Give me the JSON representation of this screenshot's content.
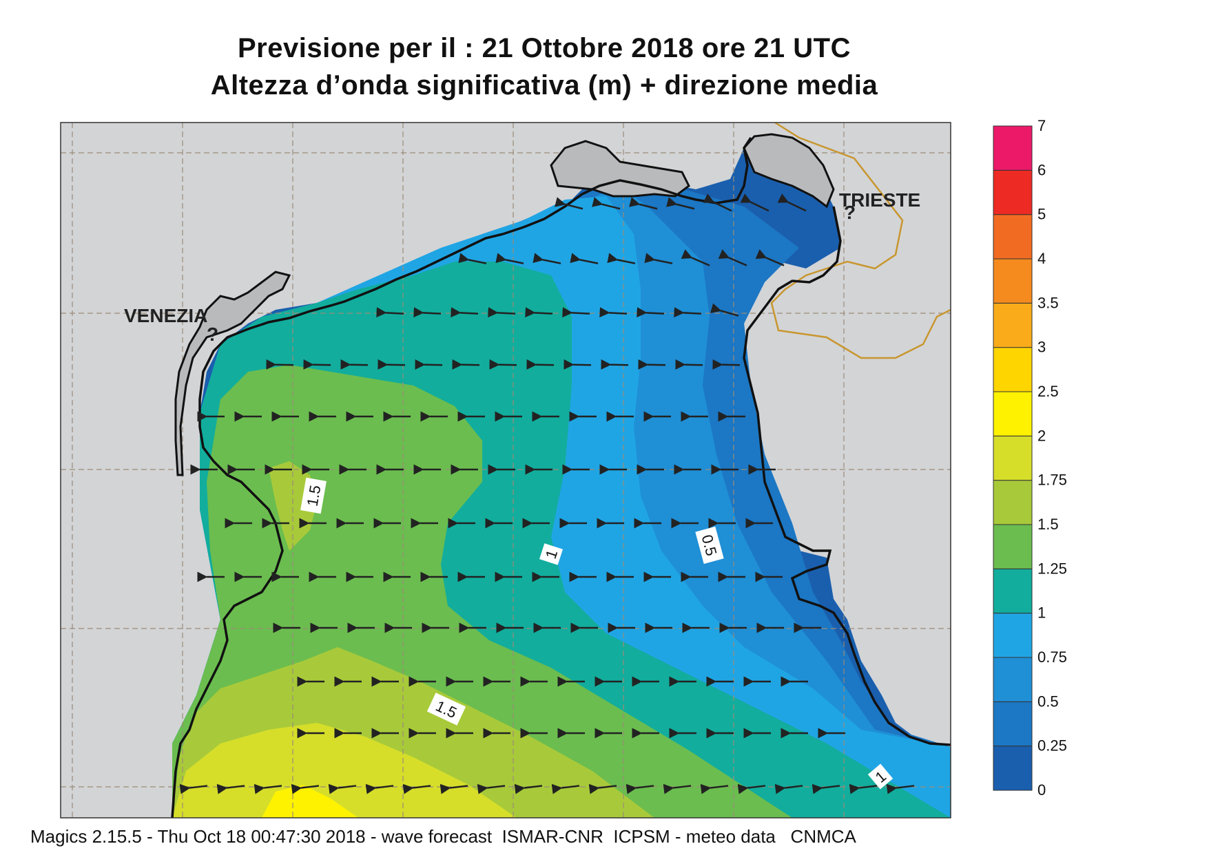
{
  "title_line1": "Previsione per il  :  21  Ottobre  2018   ore 21 UTC",
  "title_line2": "Altezza d’onda significativa (m) + direzione media",
  "footer": "Magics 2.15.5 - Thu Oct 18 00:47:30 2018 - wave forecast  ISMAR-CNR  ICPSM - meteo data   CNMCA",
  "places": {
    "venezia": "VENEZIA",
    "trieste": "TRIESTE"
  },
  "contour_labels": {
    "c1": "1.5",
    "c2": "1",
    "c3": "0.5",
    "c4": "1.5",
    "c5": "1"
  },
  "colorbar": {
    "labels": [
      "0",
      "0.25",
      "0.5",
      "0.75",
      "1",
      "1.25",
      "1.5",
      "1.75",
      "2",
      "2.5",
      "3",
      "3.5",
      "4",
      "5",
      "6",
      "7"
    ],
    "colors": [
      "#1a5fae",
      "#1c77c4",
      "#1f8fd6",
      "#20a5e4",
      "#12ad9d",
      "#6bbd4f",
      "#a8ca3a",
      "#d6de2a",
      "#fff200",
      "#ffd500",
      "#f9ab1a",
      "#f58a1f",
      "#f26b22",
      "#ee2a24",
      "#ec1968"
    ]
  },
  "colors": {
    "land": "#d3d4d6",
    "coast": "#111111",
    "border": "#c8962e",
    "arrow": "#222222",
    "grid": "#9a8c78"
  }
}
